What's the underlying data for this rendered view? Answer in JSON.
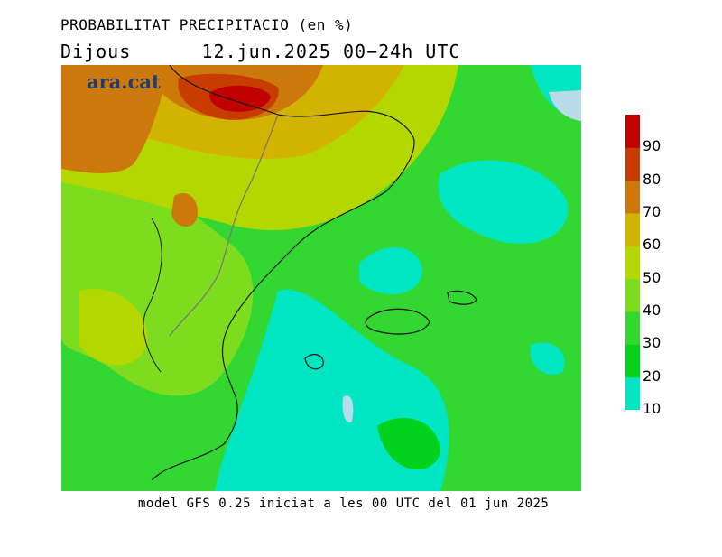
{
  "header": {
    "title": "PROBABILITAT PRECIPITACIO (en %)",
    "day": "Dijous",
    "date_range": "12.jun.2025 00−24h UTC"
  },
  "map": {
    "watermark": "ara.cat",
    "region": "Catalunya, Comunitat Valenciana i Balears"
  },
  "legend": {
    "colors": [
      "#00e6c3",
      "#00d21e",
      "#32d732",
      "#7ddc1e",
      "#b4d700",
      "#d2b400",
      "#cd780a",
      "#c83c00",
      "#c00000"
    ],
    "ticks": [
      "10",
      "20",
      "30",
      "40",
      "50",
      "60",
      "70",
      "80",
      "90"
    ]
  },
  "footer": {
    "note": "model GFS 0.25 iniciat a les 00 UTC del 01 jun 2025"
  }
}
